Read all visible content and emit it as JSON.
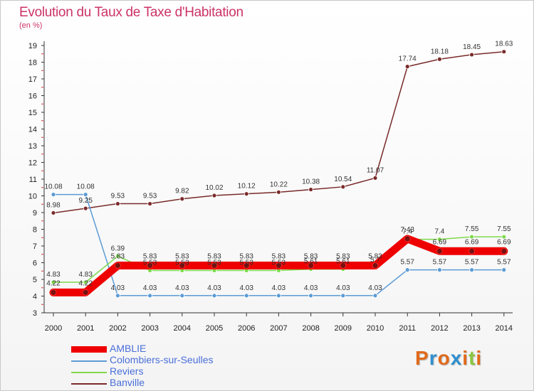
{
  "title": "Evolution du Taux de Taxe d'Habitation",
  "unit": "(en %)",
  "logo": {
    "letters": [
      "P",
      "r",
      "o",
      "x",
      "i",
      "t",
      "i"
    ],
    "colors": [
      "#e06a1b",
      "#2f8fcf",
      "#e06a1b",
      "#2f8fcf",
      "#e06a1b",
      "#8cc63f",
      "#e06a1b"
    ]
  },
  "chart_data": {
    "type": "line",
    "title": "Evolution du Taux de Taxe d'Habitation",
    "ylabel": "(en %)",
    "x": [
      "2000",
      "2001",
      "2002",
      "2003",
      "2004",
      "2005",
      "2006",
      "2007",
      "2008",
      "2009",
      "2010",
      "2011",
      "2012",
      "2013",
      "2014"
    ],
    "ylim": [
      3,
      19
    ],
    "yticks": [
      3,
      4,
      5,
      6,
      7,
      8,
      9,
      10,
      11,
      12,
      13,
      14,
      15,
      16,
      17,
      18,
      19
    ],
    "grid": false,
    "legend_position": "bottom-left",
    "series": [
      {
        "name": "AMBLIE",
        "color": "#ee0000",
        "values": [
          4.22,
          4.22,
          5.83,
          5.83,
          5.83,
          5.83,
          5.83,
          5.83,
          5.83,
          5.83,
          5.83,
          7.43,
          6.69,
          6.69,
          6.69
        ],
        "labels": [
          "4.22",
          "4.22",
          "5.83",
          "5.83",
          "5.83",
          "5.83",
          "5.83",
          "5.83",
          "5.83",
          "5.83",
          "5.83",
          "7.43",
          "6.69",
          "6.69",
          "6.69"
        ]
      },
      {
        "name": "Colombiers-sur-Seulles",
        "color": "#5b9bd5",
        "values": [
          10.08,
          10.08,
          4.03,
          4.03,
          4.03,
          4.03,
          4.03,
          4.03,
          4.03,
          4.03,
          4.03,
          5.57,
          5.57,
          5.57,
          5.57
        ],
        "labels": [
          "10.08",
          "10.08",
          "4.03",
          "4.03",
          "4.03",
          "4.03",
          "4.03",
          "4.03",
          "4.03",
          "4.03",
          "4.03",
          "5.57",
          "5.57",
          "5.57",
          "5.57"
        ]
      },
      {
        "name": "Reviers",
        "color": "#7fd94b",
        "values": [
          4.83,
          4.83,
          6.39,
          5.53,
          5.53,
          5.53,
          5.53,
          5.53,
          5.61,
          5.61,
          5.7,
          7.4,
          7.4,
          7.55,
          7.55
        ],
        "labels": [
          "4.83",
          "4.83",
          "6.39",
          "5.53",
          "5.53",
          "5.53",
          "5.53",
          "5.53",
          "5.61",
          "5.61",
          "5.7",
          "7.4",
          "7.4",
          "7.55",
          "7.55"
        ]
      },
      {
        "name": "Banville",
        "color": "#7a2a2a",
        "values": [
          8.98,
          9.25,
          9.53,
          9.53,
          9.82,
          10.02,
          10.12,
          10.22,
          10.38,
          10.54,
          11.07,
          17.74,
          18.18,
          18.45,
          18.63
        ],
        "labels": [
          "8.98",
          "9.25",
          "9.53",
          "9.53",
          "9.82",
          "10.02",
          "10.12",
          "10.22",
          "10.38",
          "10.54",
          "11.07",
          "17.74",
          "18.18",
          "18.45",
          "18.63"
        ]
      }
    ]
  }
}
